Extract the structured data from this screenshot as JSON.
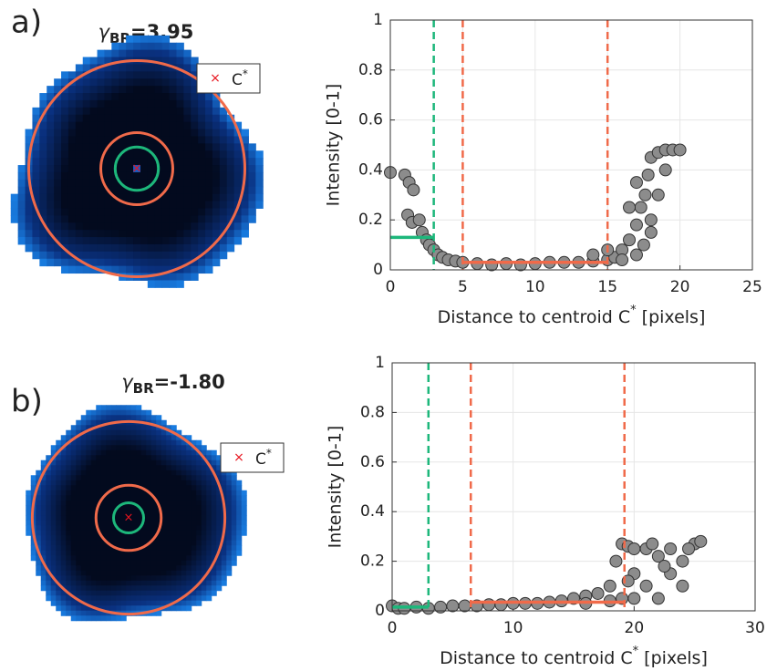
{
  "chart_data": [
    {
      "type": "scatter",
      "panel_label": "a)",
      "image_title": {
        "symbol": "γ",
        "sub": "BR",
        "text": "=3.95"
      },
      "legend": {
        "text": "C",
        "sup": "*"
      },
      "xlabel": {
        "text": "Distance to centroid C",
        "sup": "*",
        "after": " [pixels]"
      },
      "ylabel": "Intensity [0-1]",
      "xlim": [
        0,
        25
      ],
      "ylim": [
        0,
        1
      ],
      "xticks": [
        0,
        5,
        10,
        15,
        20,
        25
      ],
      "yticks": [
        0,
        0.2,
        0.4,
        0.6,
        0.8,
        1
      ],
      "grid": true,
      "color": "#8c8c8c",
      "x": [
        0,
        1,
        1.3,
        1.6,
        1.2,
        1.5,
        2,
        2.2,
        2.5,
        2.7,
        3,
        3.3,
        3.6,
        4,
        4.5,
        5,
        6,
        7,
        8,
        9,
        10,
        11,
        12,
        13,
        14,
        15,
        15.5,
        16,
        16.5,
        17,
        17.3,
        17.6,
        17.8,
        18,
        18.5,
        19,
        19.5,
        20,
        16,
        17,
        17.5,
        18,
        18.5,
        19,
        14,
        15,
        16.5,
        17,
        18
      ],
      "values": [
        0.39,
        0.38,
        0.35,
        0.32,
        0.22,
        0.19,
        0.2,
        0.15,
        0.12,
        0.1,
        0.08,
        0.06,
        0.05,
        0.04,
        0.035,
        0.03,
        0.025,
        0.02,
        0.025,
        0.02,
        0.025,
        0.03,
        0.03,
        0.03,
        0.035,
        0.04,
        0.05,
        0.08,
        0.12,
        0.18,
        0.25,
        0.3,
        0.38,
        0.45,
        0.47,
        0.48,
        0.48,
        0.48,
        0.04,
        0.06,
        0.1,
        0.15,
        0.3,
        0.4,
        0.06,
        0.08,
        0.25,
        0.35,
        0.2
      ],
      "vlines": [
        {
          "x": 3,
          "color": "#1db77b"
        },
        {
          "x": 5,
          "color": "#f06a4a"
        },
        {
          "x": 15,
          "color": "#f06a4a"
        }
      ],
      "hlines": [
        {
          "x": [
            0,
            3
          ],
          "y": 0.13,
          "color": "#1db77b"
        },
        {
          "x": [
            5,
            15
          ],
          "y": 0.03,
          "color": "#f06a4a"
        }
      ]
    },
    {
      "type": "scatter",
      "panel_label": "b)",
      "image_title": {
        "symbol": "γ",
        "sub": "BR",
        "text": "=-1.80"
      },
      "legend": {
        "text": "C",
        "sup": "*"
      },
      "xlabel": {
        "text": "Distance to centroid C",
        "sup": "*",
        "after": " [pixels]"
      },
      "ylabel": "Intensity [0-1]",
      "xlim": [
        0,
        30
      ],
      "ylim": [
        0,
        1
      ],
      "xticks": [
        0,
        10,
        20,
        30
      ],
      "yticks": [
        0,
        0.2,
        0.4,
        0.6,
        0.8,
        1
      ],
      "grid": true,
      "color": "#8c8c8c",
      "x": [
        0,
        0.5,
        1,
        2,
        3,
        4,
        5,
        6,
        7,
        8,
        9,
        10,
        11,
        12,
        13,
        14,
        15,
        16,
        17,
        18,
        18.5,
        19,
        19.5,
        20,
        20,
        20,
        21,
        21,
        22,
        22,
        23,
        23,
        24,
        24,
        25,
        25.5,
        19,
        19.5,
        22.5,
        24.5,
        21.5,
        18,
        16
      ],
      "values": [
        0.02,
        0.01,
        0.01,
        0.015,
        0.01,
        0.015,
        0.02,
        0.02,
        0.02,
        0.025,
        0.025,
        0.03,
        0.03,
        0.03,
        0.035,
        0.04,
        0.05,
        0.06,
        0.07,
        0.1,
        0.2,
        0.27,
        0.26,
        0.25,
        0.05,
        0.15,
        0.25,
        0.1,
        0.22,
        0.05,
        0.15,
        0.25,
        0.2,
        0.1,
        0.27,
        0.28,
        0.05,
        0.12,
        0.18,
        0.25,
        0.27,
        0.04,
        0.03
      ],
      "vlines": [
        {
          "x": 3,
          "color": "#1db77b"
        },
        {
          "x": 6.5,
          "color": "#f06a4a"
        },
        {
          "x": 19.2,
          "color": "#f06a4a"
        }
      ],
      "hlines": [
        {
          "x": [
            0,
            3
          ],
          "y": 0.015,
          "color": "#1db77b"
        },
        {
          "x": [
            6.5,
            19.2
          ],
          "y": 0.035,
          "color": "#f06a4a"
        }
      ]
    }
  ]
}
